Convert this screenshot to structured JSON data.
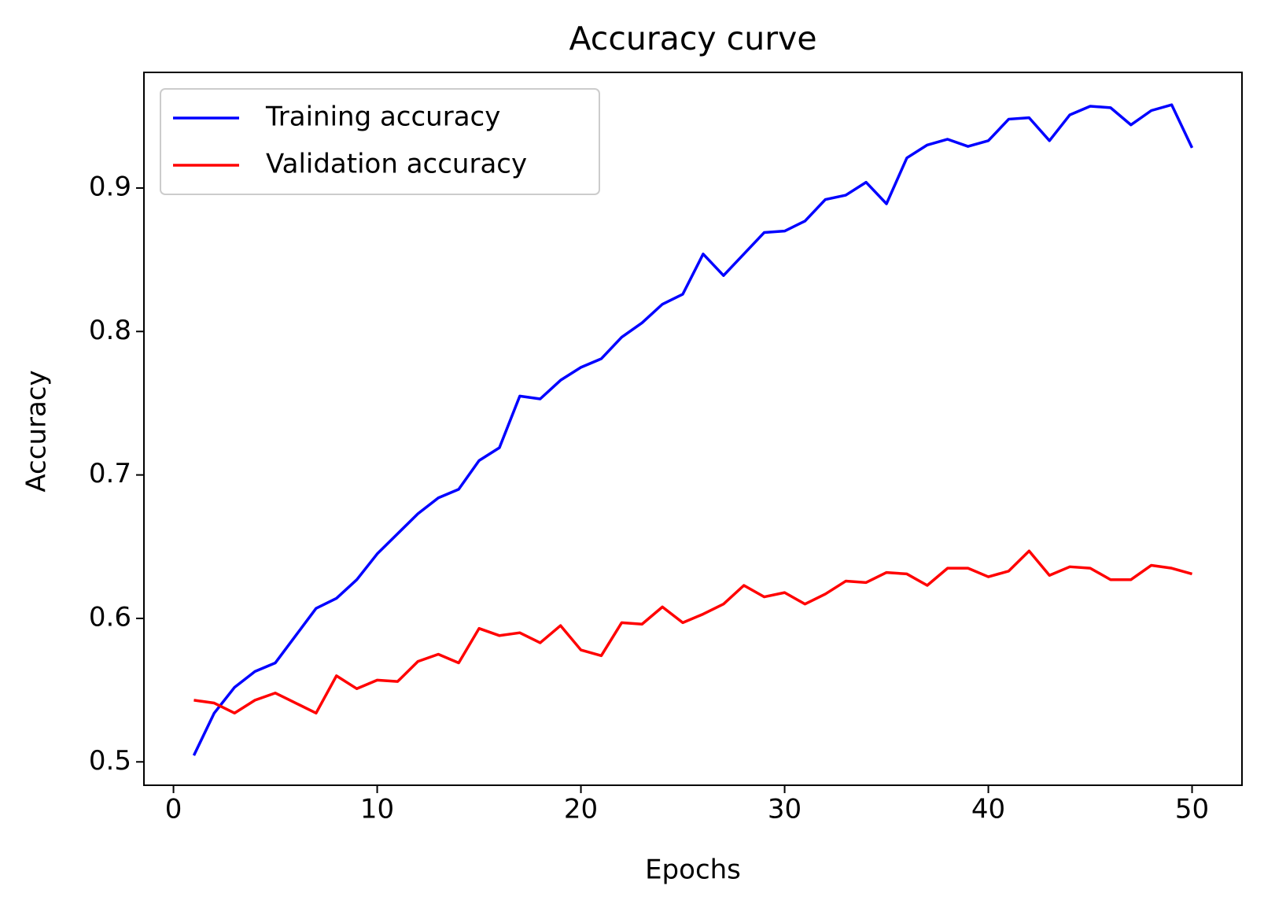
{
  "chart_data": {
    "type": "line",
    "title": "Accuracy curve",
    "x_label": "Epochs",
    "y_label": "Accuracy",
    "x": [
      1,
      2,
      3,
      4,
      5,
      6,
      7,
      8,
      9,
      10,
      11,
      12,
      13,
      14,
      15,
      16,
      17,
      18,
      19,
      20,
      21,
      22,
      23,
      24,
      25,
      26,
      27,
      28,
      29,
      30,
      31,
      32,
      33,
      34,
      35,
      36,
      37,
      38,
      39,
      40,
      41,
      42,
      43,
      44,
      45,
      46,
      47,
      48,
      49,
      50
    ],
    "series": [
      {
        "name": "Training accuracy",
        "color": "#0000ff",
        "values": [
          0.5045,
          0.534,
          0.552,
          0.563,
          0.569,
          0.588,
          0.607,
          0.614,
          0.627,
          0.645,
          0.659,
          0.673,
          0.684,
          0.69,
          0.71,
          0.719,
          0.755,
          0.753,
          0.766,
          0.775,
          0.781,
          0.796,
          0.806,
          0.819,
          0.826,
          0.854,
          0.839,
          0.854,
          0.869,
          0.87,
          0.877,
          0.892,
          0.895,
          0.904,
          0.889,
          0.921,
          0.93,
          0.934,
          0.929,
          0.933,
          0.948,
          0.949,
          0.933,
          0.951,
          0.957,
          0.956,
          0.944,
          0.954,
          0.958,
          0.928
        ]
      },
      {
        "name": "Validation accuracy",
        "color": "#ff0000",
        "values": [
          0.543,
          0.541,
          0.534,
          0.543,
          0.548,
          0.541,
          0.534,
          0.56,
          0.551,
          0.557,
          0.556,
          0.57,
          0.575,
          0.569,
          0.593,
          0.588,
          0.59,
          0.583,
          0.595,
          0.578,
          0.574,
          0.597,
          0.596,
          0.608,
          0.597,
          0.603,
          0.61,
          0.623,
          0.615,
          0.618,
          0.61,
          0.617,
          0.626,
          0.625,
          0.632,
          0.631,
          0.623,
          0.635,
          0.635,
          0.629,
          0.633,
          0.647,
          0.63,
          0.636,
          0.635,
          0.627,
          0.627,
          0.637,
          0.635,
          0.631
        ]
      }
    ],
    "xlim": [
      -1.45,
      52.45
    ],
    "ylim": [
      0.4837,
      0.9806
    ],
    "xticks": [
      0,
      10,
      20,
      30,
      40,
      50
    ],
    "yticks": [
      0.5,
      0.6,
      0.7,
      0.8,
      0.9
    ],
    "legend": "upper left",
    "grid": false
  }
}
